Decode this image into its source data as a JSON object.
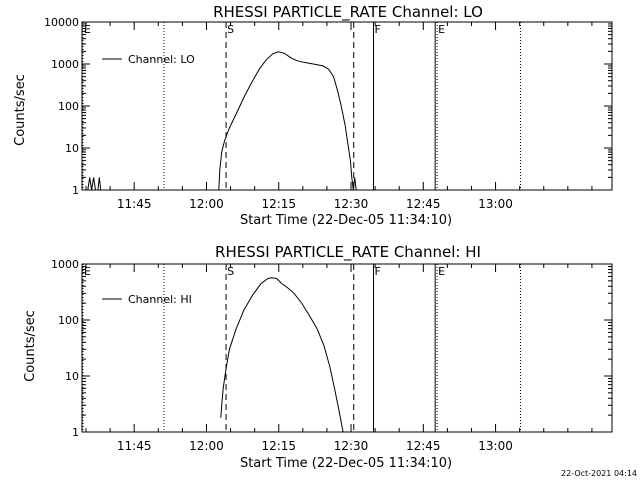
{
  "footer": {
    "timestamp": "22-Oct-2021 04:14"
  },
  "chart_data": [
    {
      "type": "line",
      "title": "RHESSI PARTICLE_RATE Channel: LO",
      "xlabel": "Start Time (22-Dec-05 11:34:10)",
      "ylabel": "Counts/sec",
      "x_unit": "minutes after 11:34:10",
      "xlim": [
        0,
        110
      ],
      "ylim": [
        1,
        10000
      ],
      "yscale": "log",
      "x_ticks": [
        {
          "x": 10.833,
          "label": "11:45"
        },
        {
          "x": 25.833,
          "label": "12:00"
        },
        {
          "x": 40.833,
          "label": "12:15"
        },
        {
          "x": 55.833,
          "label": "12:30"
        },
        {
          "x": 70.833,
          "label": "12:45"
        },
        {
          "x": 85.833,
          "label": "13:00"
        }
      ],
      "y_ticks": [
        {
          "y": 1,
          "label": "1"
        },
        {
          "y": 10,
          "label": "10"
        },
        {
          "y": 100,
          "label": "100"
        },
        {
          "y": 1000,
          "label": "1000"
        },
        {
          "y": 10000,
          "label": "10000"
        }
      ],
      "markers": [
        {
          "x": 0.2,
          "label": "E",
          "style": "dotted"
        },
        {
          "x": 17.0,
          "label": "",
          "style": "dotted"
        },
        {
          "x": 29.9,
          "label": "S",
          "style": "dashed"
        },
        {
          "x": 56.4,
          "label": "",
          "style": "dashed"
        },
        {
          "x": 60.5,
          "label": "F",
          "style": "solid"
        },
        {
          "x": 73.3,
          "label": "",
          "style": "solid"
        },
        {
          "x": 73.7,
          "label": "E",
          "style": "dotted"
        },
        {
          "x": 91.0,
          "label": "",
          "style": "dotted"
        }
      ],
      "legend": {
        "label": "Channel: LO",
        "position": "top-left"
      },
      "series": [
        {
          "name": "Channel: LO",
          "segments": [
            [
              [
                1.2,
                1
              ],
              [
                1.6,
                2
              ],
              [
                2.0,
                1
              ],
              [
                2.4,
                2
              ],
              [
                2.8,
                1
              ]
            ],
            [
              [
                3.3,
                1
              ],
              [
                3.6,
                2
              ],
              [
                3.9,
                1
              ]
            ],
            [
              [
                28.4,
                1
              ],
              [
                28.6,
                3
              ],
              [
                29.0,
                8
              ],
              [
                29.6,
                15
              ],
              [
                30.6,
                30
              ],
              [
                32.0,
                65
              ],
              [
                33.6,
                160
              ],
              [
                35.2,
                360
              ],
              [
                36.8,
                750
              ],
              [
                38.2,
                1250
              ],
              [
                39.6,
                1750
              ],
              [
                40.8,
                1950
              ],
              [
                42.0,
                1800
              ],
              [
                43.4,
                1400
              ],
              [
                44.6,
                1200
              ],
              [
                46.0,
                1100
              ],
              [
                48.0,
                1000
              ],
              [
                50.0,
                900
              ],
              [
                51.2,
                750
              ],
              [
                52.2,
                500
              ],
              [
                53.0,
                240
              ],
              [
                53.8,
                100
              ],
              [
                54.6,
                35
              ],
              [
                55.2,
                12
              ],
              [
                55.7,
                5
              ],
              [
                56.0,
                2
              ],
              [
                56.3,
                1
              ],
              [
                56.6,
                2
              ],
              [
                56.9,
                1
              ]
            ]
          ]
        }
      ]
    },
    {
      "type": "line",
      "title": "RHESSI PARTICLE_RATE Channel: HI",
      "xlabel": "Start Time (22-Dec-05 11:34:10)",
      "ylabel": "Counts/sec",
      "x_unit": "minutes after 11:34:10",
      "xlim": [
        0,
        110
      ],
      "ylim": [
        1,
        1000
      ],
      "yscale": "log",
      "x_ticks": [
        {
          "x": 10.833,
          "label": "11:45"
        },
        {
          "x": 25.833,
          "label": "12:00"
        },
        {
          "x": 40.833,
          "label": "12:15"
        },
        {
          "x": 55.833,
          "label": "12:30"
        },
        {
          "x": 70.833,
          "label": "12:45"
        },
        {
          "x": 85.833,
          "label": "13:00"
        }
      ],
      "y_ticks": [
        {
          "y": 1,
          "label": "1"
        },
        {
          "y": 10,
          "label": "10"
        },
        {
          "y": 100,
          "label": "100"
        },
        {
          "y": 1000,
          "label": "1000"
        }
      ],
      "markers": [
        {
          "x": 0.2,
          "label": "E",
          "style": "dotted"
        },
        {
          "x": 17.0,
          "label": "",
          "style": "dotted"
        },
        {
          "x": 29.9,
          "label": "S",
          "style": "dashed"
        },
        {
          "x": 56.4,
          "label": "",
          "style": "dashed"
        },
        {
          "x": 60.5,
          "label": "F",
          "style": "solid"
        },
        {
          "x": 73.3,
          "label": "",
          "style": "solid"
        },
        {
          "x": 73.7,
          "label": "E",
          "style": "dotted"
        },
        {
          "x": 91.0,
          "label": "",
          "style": "dotted"
        }
      ],
      "legend": {
        "label": "Channel: HI",
        "position": "top-left"
      },
      "series": [
        {
          "name": "Channel: HI",
          "segments": [
            [
              [
                28.8,
                1.8
              ],
              [
                29.0,
                3
              ],
              [
                29.3,
                6
              ],
              [
                29.8,
                12
              ],
              [
                30.6,
                30
              ],
              [
                32.0,
                70
              ],
              [
                33.6,
                150
              ],
              [
                35.4,
                280
              ],
              [
                37.2,
                450
              ],
              [
                38.6,
                550
              ],
              [
                39.4,
                570
              ],
              [
                40.4,
                550
              ],
              [
                41.4,
                450
              ],
              [
                42.6,
                380
              ],
              [
                44.0,
                300
              ],
              [
                45.6,
                200
              ],
              [
                47.2,
                120
              ],
              [
                48.8,
                70
              ],
              [
                50.2,
                35
              ],
              [
                51.4,
                15
              ],
              [
                52.4,
                6
              ],
              [
                53.2,
                2.8
              ],
              [
                53.8,
                1.5
              ],
              [
                54.2,
                1
              ]
            ]
          ]
        }
      ]
    }
  ]
}
